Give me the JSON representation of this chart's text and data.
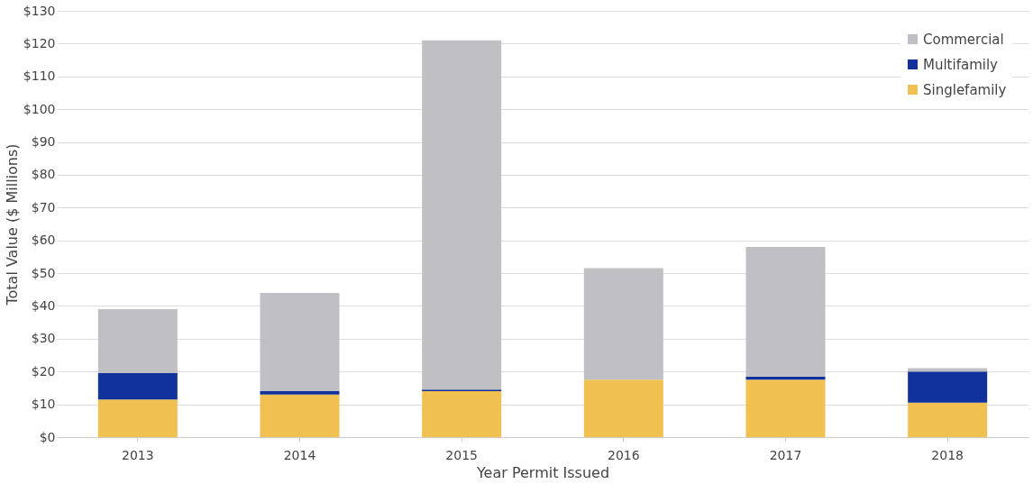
{
  "chart_data": {
    "type": "bar",
    "stacked": true,
    "xlabel": "Year Permit Issued",
    "ylabel": "Total Value ($ Millions)",
    "categories": [
      "2013",
      "2014",
      "2015",
      "2016",
      "2017",
      "2018"
    ],
    "series": [
      {
        "name": "Singlefamily",
        "color": "#f0c050",
        "values": [
          11.5,
          13,
          14,
          17.5,
          17.5,
          10.5
        ]
      },
      {
        "name": "Multifamily",
        "color": "#10329a",
        "values": [
          8,
          1,
          0.5,
          0,
          1,
          9.5
        ]
      },
      {
        "name": "Commercial",
        "color": "#c0c0c4",
        "values": [
          19.5,
          30,
          106.5,
          34,
          39.5,
          1
        ]
      }
    ],
    "ylim": [
      0,
      130
    ],
    "yticks": [
      {
        "value": 0,
        "label": "$0"
      },
      {
        "value": 10,
        "label": "$10"
      },
      {
        "value": 20,
        "label": "$20"
      },
      {
        "value": 30,
        "label": "$30"
      },
      {
        "value": 40,
        "label": "$40"
      },
      {
        "value": 50,
        "label": "$50"
      },
      {
        "value": 60,
        "label": "$60"
      },
      {
        "value": 70,
        "label": "$70"
      },
      {
        "value": 80,
        "label": "$80"
      },
      {
        "value": 90,
        "label": "$90"
      },
      {
        "value": 100,
        "label": "$100"
      },
      {
        "value": 110,
        "label": "$110"
      },
      {
        "value": 120,
        "label": "$120"
      },
      {
        "value": 130,
        "label": "$130"
      }
    ],
    "grid": "y",
    "legend": "top right"
  }
}
